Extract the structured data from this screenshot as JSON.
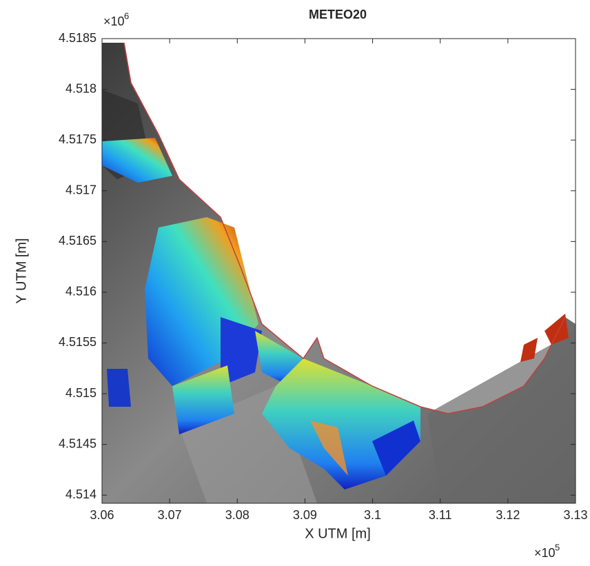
{
  "chart_data": {
    "type": "image",
    "title": "METEO20",
    "xlabel": "X UTM [m]",
    "ylabel": "Y UTM [m]",
    "x_exponent": {
      "base": "×10",
      "power": "5"
    },
    "y_exponent": {
      "base": "×10",
      "power": "6"
    },
    "xlim": [
      3.06,
      3.13
    ],
    "xticks": [
      3.06,
      3.07,
      3.08,
      3.09,
      3.1,
      3.11,
      3.12,
      3.13
    ],
    "ylim": [
      4.51392,
      4.5185
    ],
    "yticks": [
      4.514,
      4.5145,
      4.515,
      4.5155,
      4.516,
      4.5165,
      4.517,
      4.5175,
      4.518,
      4.5185
    ]
  }
}
